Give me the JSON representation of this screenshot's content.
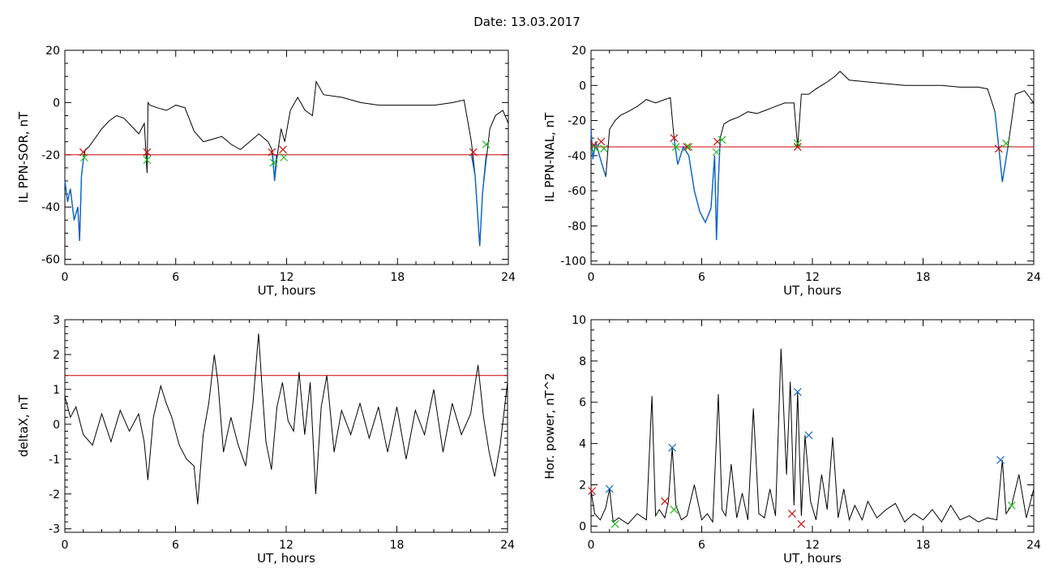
{
  "figure": {
    "title": "Date:  13.03.2017"
  },
  "colors": {
    "main_line": "#000000",
    "highlight_line": "#0a64c8",
    "threshold_line": "#cc0000",
    "marker_red": "#cc1111",
    "marker_green": "#22bb22",
    "marker_blue": "#1a66c8"
  },
  "chart_data": [
    {
      "type": "line",
      "ylabel": "IL PPN-SOR, nT",
      "xlabel": "UT, hours",
      "xlim": [
        0,
        24
      ],
      "ylim": [
        -62,
        20
      ],
      "xticks": [
        0,
        6,
        12,
        18,
        24
      ],
      "yticks": [
        -60,
        -40,
        -20,
        0,
        20
      ],
      "threshold": -20,
      "series": [
        {
          "x": [
            0,
            0.15,
            0.3,
            0.5,
            0.7,
            0.8,
            0.9,
            1.0,
            1.1,
            1.3,
            1.6,
            2.0,
            2.4,
            2.8,
            3.2,
            3.6,
            4.0,
            4.3,
            4.45,
            4.5,
            4.6,
            5.0,
            5.5,
            6.0,
            6.5,
            7.0,
            7.5,
            8.0,
            8.5,
            9.0,
            9.5,
            10.0,
            10.5,
            11.0,
            11.2,
            11.35,
            11.5,
            11.7,
            11.9,
            12.2,
            12.6,
            13.0,
            13.4,
            13.6,
            14.0,
            15.0,
            16.0,
            17.0,
            18.0,
            19.0,
            20.0,
            21.0,
            21.6,
            22.0,
            22.2,
            22.45,
            22.6,
            22.8,
            23.0,
            23.3,
            23.7,
            24.0
          ],
          "y": [
            -30,
            -38,
            -33,
            -45,
            -40,
            -53,
            -28,
            -22,
            -18,
            -17,
            -14,
            -10,
            -7,
            -5,
            -6,
            -9,
            -12,
            -8,
            -27,
            0,
            -1,
            -2,
            -3,
            -1,
            -2,
            -11,
            -15,
            -14,
            -13,
            -16,
            -18,
            -15,
            -12,
            -15,
            -18,
            -30,
            -20,
            -10,
            -15,
            -3,
            2,
            -3,
            -5,
            8,
            3,
            2,
            0,
            -1,
            -1,
            -1,
            -1,
            0,
            1,
            -15,
            -28,
            -55,
            -35,
            -22,
            -10,
            -5,
            -3,
            -8
          ]
        }
      ],
      "highlight_segments": [
        {
          "x": [
            0,
            0.15,
            0.3,
            0.5,
            0.7,
            0.8,
            0.9,
            1.0
          ],
          "y": [
            -30,
            -38,
            -33,
            -45,
            -40,
            -53,
            -28,
            -22
          ]
        },
        {
          "x": [
            11.25,
            11.35,
            11.45
          ],
          "y": [
            -20,
            -30,
            -20
          ]
        },
        {
          "x": [
            22.0,
            22.2,
            22.45,
            22.6,
            22.8
          ],
          "y": [
            -20,
            -28,
            -55,
            -35,
            -20
          ]
        }
      ],
      "markers": [
        {
          "x": 1.0,
          "y": -19,
          "color": "red"
        },
        {
          "x": 1.05,
          "y": -21,
          "color": "green"
        },
        {
          "x": 4.45,
          "y": -19,
          "color": "red"
        },
        {
          "x": 4.45,
          "y": -22,
          "color": "green"
        },
        {
          "x": 11.2,
          "y": -19,
          "color": "red"
        },
        {
          "x": 11.3,
          "y": -23,
          "color": "green"
        },
        {
          "x": 11.8,
          "y": -18,
          "color": "red"
        },
        {
          "x": 11.85,
          "y": -21,
          "color": "green"
        },
        {
          "x": 22.1,
          "y": -19,
          "color": "red"
        },
        {
          "x": 22.8,
          "y": -16,
          "color": "green"
        }
      ]
    },
    {
      "type": "line",
      "ylabel": "IL PPN-NAL, nT",
      "xlabel": "UT, hours",
      "xlim": [
        0,
        24
      ],
      "ylim": [
        -102,
        20
      ],
      "xticks": [
        0,
        6,
        12,
        18,
        24
      ],
      "yticks": [
        -100,
        -80,
        -60,
        -40,
        -20,
        0,
        20
      ],
      "threshold": -35,
      "series": [
        {
          "x": [
            0,
            0.1,
            0.25,
            0.4,
            0.6,
            0.8,
            1.0,
            1.3,
            1.6,
            2.0,
            2.5,
            3.0,
            3.5,
            4.0,
            4.3,
            4.5,
            4.7,
            5.0,
            5.3,
            5.6,
            5.9,
            6.2,
            6.5,
            6.7,
            6.8,
            6.9,
            7.0,
            7.2,
            7.5,
            8.0,
            8.5,
            9.0,
            9.5,
            10.0,
            10.5,
            11.0,
            11.2,
            11.4,
            11.8,
            12.2,
            12.8,
            13.2,
            13.5,
            14.0,
            15.0,
            16.0,
            17.0,
            18.0,
            19.0,
            20.0,
            21.0,
            21.5,
            21.9,
            22.1,
            22.3,
            22.6,
            23.0,
            23.5,
            24.0
          ],
          "y": [
            -25,
            -42,
            -32,
            -38,
            -45,
            -52,
            -25,
            -20,
            -17,
            -15,
            -12,
            -8,
            -10,
            -8,
            -7,
            -30,
            -45,
            -35,
            -40,
            -60,
            -72,
            -78,
            -70,
            -40,
            -88,
            -55,
            -30,
            -22,
            -20,
            -18,
            -15,
            -16,
            -14,
            -12,
            -10,
            -10,
            -35,
            -5,
            -5,
            -2,
            2,
            5,
            8,
            3,
            2,
            1,
            0,
            0,
            0,
            -1,
            -1,
            -2,
            -15,
            -35,
            -55,
            -35,
            -5,
            -3,
            -10
          ]
        }
      ],
      "highlight_segments": [
        {
          "x": [
            0,
            0.1,
            0.25,
            0.4,
            0.6,
            0.8
          ],
          "y": [
            -25,
            -42,
            -32,
            -38,
            -45,
            -52
          ]
        },
        {
          "x": [
            4.5,
            4.7,
            5.0,
            5.3,
            5.6,
            5.9,
            6.2,
            6.5,
            6.7,
            6.8,
            6.9,
            7.0
          ],
          "y": [
            -30,
            -45,
            -35,
            -40,
            -60,
            -72,
            -78,
            -70,
            -40,
            -88,
            -55,
            -30
          ]
        },
        {
          "x": [
            21.9,
            22.1,
            22.3,
            22.6
          ],
          "y": [
            -15,
            -35,
            -55,
            -35
          ]
        }
      ],
      "markers": [
        {
          "x": 0.15,
          "y": -34,
          "color": "red"
        },
        {
          "x": 0.25,
          "y": -36,
          "color": "green"
        },
        {
          "x": 0.55,
          "y": -32,
          "color": "red"
        },
        {
          "x": 0.7,
          "y": -36,
          "color": "green"
        },
        {
          "x": 4.5,
          "y": -30,
          "color": "red"
        },
        {
          "x": 4.6,
          "y": -35,
          "color": "green"
        },
        {
          "x": 5.2,
          "y": -35,
          "color": "red"
        },
        {
          "x": 5.3,
          "y": -35,
          "color": "green"
        },
        {
          "x": 6.85,
          "y": -32,
          "color": "red"
        },
        {
          "x": 6.8,
          "y": -38,
          "color": "green"
        },
        {
          "x": 7.1,
          "y": -31,
          "color": "green"
        },
        {
          "x": 11.2,
          "y": -35,
          "color": "red"
        },
        {
          "x": 11.2,
          "y": -33,
          "color": "green"
        },
        {
          "x": 22.1,
          "y": -36,
          "color": "red"
        },
        {
          "x": 22.5,
          "y": -33,
          "color": "green"
        }
      ]
    },
    {
      "type": "line",
      "ylabel": "deltaX, nT",
      "xlabel": "UT, hours",
      "xlim": [
        0,
        24
      ],
      "ylim": [
        -3.1,
        3
      ],
      "xticks": [
        0,
        6,
        12,
        18,
        24
      ],
      "yticks": [
        -3,
        -2,
        -1,
        0,
        1,
        2,
        3
      ],
      "threshold": 1.4,
      "series": [
        {
          "x": [
            0,
            0.3,
            0.6,
            1.0,
            1.5,
            2.0,
            2.5,
            3.0,
            3.5,
            4.0,
            4.3,
            4.5,
            4.8,
            5.2,
            5.5,
            5.8,
            6.2,
            6.6,
            7.0,
            7.2,
            7.5,
            7.8,
            8.1,
            8.3,
            8.6,
            9.0,
            9.4,
            9.8,
            10.2,
            10.5,
            10.7,
            10.9,
            11.2,
            11.5,
            11.8,
            12.1,
            12.4,
            12.7,
            13.0,
            13.3,
            13.6,
            13.9,
            14.2,
            14.6,
            15.0,
            15.5,
            16.0,
            16.5,
            17.0,
            17.5,
            18.0,
            18.5,
            19.0,
            19.5,
            20.0,
            20.5,
            21.0,
            21.5,
            22.0,
            22.4,
            22.7,
            23.0,
            23.3,
            23.6,
            24.0
          ],
          "y": [
            0.8,
            0.2,
            0.5,
            -0.3,
            -0.6,
            0.3,
            -0.5,
            0.4,
            -0.2,
            0.3,
            -0.5,
            -1.6,
            0.2,
            1.1,
            0.6,
            0.2,
            -0.6,
            -1.0,
            -1.2,
            -2.3,
            -0.3,
            0.6,
            2.0,
            1.2,
            -0.8,
            0.2,
            -0.6,
            -1.2,
            0.6,
            2.6,
            1.0,
            -0.5,
            -1.3,
            0.5,
            1.2,
            0.1,
            -0.2,
            1.5,
            -0.3,
            1.2,
            -2.0,
            0.5,
            1.4,
            -0.8,
            0.4,
            -0.3,
            0.6,
            -0.4,
            0.5,
            -0.8,
            0.5,
            -1.0,
            0.4,
            -0.3,
            1.0,
            -0.8,
            0.6,
            -0.3,
            0.3,
            1.7,
            0.2,
            -0.8,
            -1.5,
            -0.6,
            1.2
          ]
        }
      ],
      "highlight_segments": [],
      "markers": []
    },
    {
      "type": "line",
      "ylabel": "Hor. power, nT^2",
      "xlabel": "UT, hours",
      "xlim": [
        0,
        24
      ],
      "ylim": [
        -0.3,
        10
      ],
      "xticks": [
        0,
        6,
        12,
        18,
        24
      ],
      "yticks": [
        0,
        2,
        4,
        6,
        8,
        10
      ],
      "threshold": null,
      "series": [
        {
          "x": [
            0,
            0.2,
            0.5,
            0.8,
            1.0,
            1.2,
            1.5,
            2.0,
            2.5,
            3.0,
            3.3,
            3.5,
            3.7,
            4.0,
            4.2,
            4.4,
            4.6,
            4.9,
            5.2,
            5.6,
            6.0,
            6.3,
            6.6,
            6.9,
            7.1,
            7.3,
            7.6,
            7.9,
            8.2,
            8.5,
            8.8,
            9.1,
            9.4,
            9.7,
            10.0,
            10.3,
            10.6,
            10.8,
            11.0,
            11.2,
            11.4,
            11.6,
            11.9,
            12.2,
            12.5,
            12.8,
            13.1,
            13.4,
            13.7,
            14.0,
            14.3,
            14.7,
            15.0,
            15.5,
            16.0,
            16.5,
            17.0,
            17.5,
            18.0,
            18.5,
            19.0,
            19.5,
            20.0,
            20.5,
            21.0,
            21.5,
            22.0,
            22.3,
            22.5,
            22.8,
            23.2,
            23.6,
            24.0
          ],
          "y": [
            1.7,
            0.6,
            0.3,
            0.9,
            1.8,
            0.2,
            0.4,
            0.1,
            0.6,
            0.3,
            6.3,
            0.5,
            0.8,
            0.4,
            1.2,
            3.8,
            1.0,
            0.3,
            0.5,
            2.0,
            0.3,
            0.6,
            0.2,
            6.4,
            0.8,
            0.5,
            3.0,
            0.4,
            1.6,
            0.3,
            5.7,
            0.6,
            0.4,
            1.8,
            0.5,
            8.6,
            2.5,
            7.0,
            1.0,
            6.5,
            0.5,
            4.4,
            1.2,
            0.3,
            2.5,
            0.8,
            4.3,
            0.4,
            1.8,
            0.3,
            1.0,
            0.3,
            1.2,
            0.4,
            0.8,
            1.1,
            0.2,
            0.6,
            0.3,
            0.8,
            0.2,
            1.0,
            0.3,
            0.5,
            0.2,
            0.4,
            0.3,
            3.2,
            0.6,
            1.0,
            2.5,
            0.4,
            1.8
          ]
        }
      ],
      "highlight_segments": [],
      "markers": [
        {
          "x": 0.05,
          "y": 1.7,
          "color": "red"
        },
        {
          "x": 1.0,
          "y": 1.8,
          "color": "blue"
        },
        {
          "x": 1.3,
          "y": 0.1,
          "color": "green"
        },
        {
          "x": 4.0,
          "y": 1.2,
          "color": "red"
        },
        {
          "x": 4.4,
          "y": 3.8,
          "color": "blue"
        },
        {
          "x": 4.5,
          "y": 0.8,
          "color": "green"
        },
        {
          "x": 10.9,
          "y": 0.6,
          "color": "red"
        },
        {
          "x": 11.2,
          "y": 6.5,
          "color": "blue"
        },
        {
          "x": 11.4,
          "y": 0.1,
          "color": "red"
        },
        {
          "x": 11.8,
          "y": 4.4,
          "color": "blue"
        },
        {
          "x": 22.2,
          "y": 3.2,
          "color": "blue"
        },
        {
          "x": 22.8,
          "y": 1.0,
          "color": "green"
        }
      ]
    }
  ]
}
